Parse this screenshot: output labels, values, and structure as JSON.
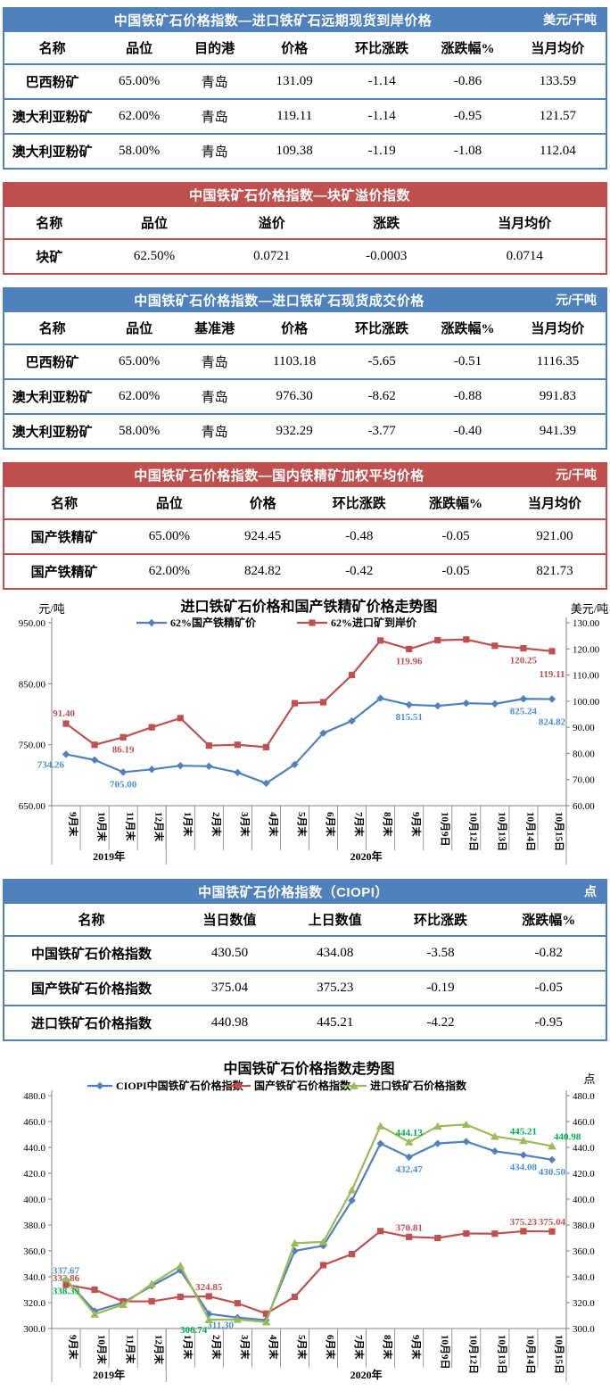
{
  "colors": {
    "table_blue": "#4f81bd",
    "table_red": "#c0504d",
    "series_blue": "#4f81bd",
    "series_red": "#c0504d",
    "series_green": "#9bbb59",
    "label_blue": "#4a90d9",
    "label_red": "#c0504d",
    "label_green": "#00b050",
    "axis_gray": "#808080"
  },
  "tables": [
    {
      "title": "中国铁矿石价格指数—进口铁矿石远期现货到岸价格",
      "unit": "美元/干吨",
      "theme": "blue",
      "columns": [
        "名称",
        "品位",
        "目的港",
        "价格",
        "环比涨跌",
        "涨跌幅%",
        "当月均价"
      ],
      "rows": [
        [
          "巴西粉矿",
          "65.00%",
          "青岛",
          "131.09",
          "-1.14",
          "-0.86",
          "133.59"
        ],
        [
          "澳大利亚粉矿",
          "62.00%",
          "青岛",
          "119.11",
          "-1.14",
          "-0.95",
          "121.57"
        ],
        [
          "澳大利亚粉矿",
          "58.00%",
          "青岛",
          "109.38",
          "-1.19",
          "-1.08",
          "112.04"
        ]
      ]
    },
    {
      "title": "中国铁矿石价格指数—块矿溢价指数",
      "unit": "",
      "theme": "red",
      "columns": [
        "名称",
        "品位",
        "溢价",
        "涨跌",
        "当月均价"
      ],
      "rows": [
        [
          "块矿",
          "62.50%",
          "0.0721",
          "-0.0003",
          "0.0714"
        ]
      ]
    },
    {
      "title": "中国铁矿石价格指数—进口铁矿石现货成交价格",
      "unit": "元/干吨",
      "theme": "blue",
      "columns": [
        "名称",
        "品位",
        "基准港",
        "价格",
        "环比涨跌",
        "涨跌幅%",
        "当月均价"
      ],
      "rows": [
        [
          "巴西粉矿",
          "65.00%",
          "青岛",
          "1103.18",
          "-5.65",
          "-0.51",
          "1116.35"
        ],
        [
          "澳大利亚粉矿",
          "62.00%",
          "青岛",
          "976.30",
          "-8.62",
          "-0.88",
          "991.83"
        ],
        [
          "澳大利亚粉矿",
          "58.00%",
          "青岛",
          "932.29",
          "-3.77",
          "-0.40",
          "941.39"
        ]
      ]
    },
    {
      "title": "中国铁矿石价格指数—国内铁精矿加权平均价格",
      "unit": "元/干吨",
      "theme": "red",
      "columns": [
        "名称",
        "品位",
        "价格",
        "环比涨跌",
        "涨跌幅%",
        "当月均价"
      ],
      "rows": [
        [
          "国产铁精矿",
          "65.00%",
          "924.45",
          "-0.48",
          "-0.05",
          "921.00"
        ],
        [
          "国产铁精矿",
          "62.00%",
          "824.82",
          "-0.42",
          "-0.05",
          "821.73"
        ]
      ]
    },
    {
      "title": "中国铁矿石价格指数（CIOPI）",
      "unit": "点",
      "theme": "blue",
      "columns": [
        "名称",
        "当日数值",
        "上日数值",
        "环比涨跌",
        "涨跌幅%"
      ],
      "rows": [
        [
          "中国铁矿石价格指数",
          "430.50",
          "434.08",
          "-3.58",
          "-0.82"
        ],
        [
          "国产铁矿石价格指数",
          "375.04",
          "375.23",
          "-0.19",
          "-0.05"
        ],
        [
          "进口铁矿石价格指数",
          "440.98",
          "445.21",
          "-4.22",
          "-0.95"
        ]
      ]
    }
  ],
  "chart_data": [
    {
      "type": "line",
      "title": "进口铁矿石价格和国产铁精矿价格走势图",
      "left_axis": {
        "unit": "元/吨",
        "min": 650,
        "max": 950,
        "ticks": [
          "950.00",
          "850.00",
          "750.00",
          "650.00"
        ]
      },
      "right_axis": {
        "unit": "美元/吨",
        "min": 60,
        "max": 130,
        "ticks": [
          "130.00",
          "120.00",
          "110.00",
          "100.00",
          "90.00",
          "80.00",
          "70.00",
          "60.00"
        ]
      },
      "categories": [
        "9月末",
        "10月末",
        "11月末",
        "12月末",
        "1月末",
        "2月末",
        "3月末",
        "4月末",
        "5月末",
        "6月末",
        "7月末",
        "8月末",
        "9月末",
        "10月9日",
        "10月12日",
        "10月13日",
        "10月14日",
        "10月15日"
      ],
      "category_groups": [
        {
          "label": "2019年",
          "span": 4
        },
        {
          "label": "2020年",
          "span": 14
        }
      ],
      "grid": false,
      "legend_position": "top",
      "series": [
        {
          "name": "62%国产铁精矿价",
          "axis": "left",
          "color": "#4f81bd",
          "label_color": "#4a90d9",
          "marker": "diamond",
          "values": [
            734.26,
            725,
            705,
            709.5,
            715.6,
            714.7,
            704.4,
            686.7,
            717.6,
            769,
            789,
            826.2,
            815.51,
            813.7,
            818,
            817,
            825.24,
            824.82
          ],
          "labels": [
            {
              "i": 0,
              "t": "734.26",
              "p": "belowL"
            },
            {
              "i": 2,
              "t": "705.00",
              "p": "below"
            },
            {
              "i": 12,
              "t": "815.51",
              "p": "below"
            },
            {
              "i": 16,
              "t": "825.24",
              "p": "below"
            },
            {
              "i": 17,
              "t": "824.82",
              "p": "below2"
            }
          ]
        },
        {
          "name": "62%进口矿到岸价",
          "axis": "right",
          "color": "#c0504d",
          "label_color": "#c0504d",
          "marker": "square",
          "values": [
            91.4,
            83.3,
            86.19,
            90,
            93.5,
            83,
            83.3,
            82.4,
            99.2,
            99.6,
            110,
            123.2,
            119.96,
            123.3,
            123.6,
            121.2,
            120.25,
            119.11
          ],
          "labels": [
            {
              "i": 0,
              "t": "91.40",
              "p": "aboveL"
            },
            {
              "i": 2,
              "t": "86.19",
              "p": "below"
            },
            {
              "i": 12,
              "t": "119.96",
              "p": "below"
            },
            {
              "i": 16,
              "t": "120.25",
              "p": "below"
            },
            {
              "i": 17,
              "t": "119.11",
              "p": "below2"
            }
          ]
        }
      ]
    },
    {
      "type": "line",
      "title": "中国铁矿石价格指数走势图",
      "left_axis": {
        "unit": "",
        "min": 300,
        "max": 480,
        "ticks": [
          "480.0",
          "460.0",
          "440.0",
          "420.0",
          "400.0",
          "380.0",
          "360.0",
          "340.0",
          "320.0",
          "300.0"
        ]
      },
      "right_axis": {
        "unit": "点",
        "min": 300,
        "max": 480,
        "ticks": [
          "480.0",
          "460.0",
          "440.0",
          "420.0",
          "400.0",
          "380.0",
          "360.0",
          "340.0",
          "320.0",
          "300.0"
        ]
      },
      "categories": [
        "9月末",
        "10月末",
        "11月末",
        "12月末",
        "1月末",
        "2月末",
        "3月末",
        "4月末",
        "5月末",
        "6月末",
        "7月末",
        "8月末",
        "9月末",
        "10月9日",
        "10月12日",
        "10月13日",
        "10月14日",
        "10月15日"
      ],
      "category_groups": [
        {
          "label": "2019年",
          "span": 4
        },
        {
          "label": "2020年",
          "span": 14
        }
      ],
      "grid": false,
      "legend_position": "top",
      "series": [
        {
          "name": "CIOPI中国铁矿石价格指数",
          "axis": "left",
          "color": "#4f81bd",
          "label_color": "#4a90d9",
          "marker": "diamond",
          "values": [
            337.67,
            313.5,
            320,
            333,
            345,
            311.3,
            308.5,
            306.5,
            360,
            364,
            399,
            443,
            432.47,
            443,
            444.5,
            437,
            434.08,
            430.5
          ],
          "labels": [
            {
              "i": 0,
              "t": "337.67",
              "p": "above"
            },
            {
              "i": 5,
              "t": "311.30",
              "p": "belowR"
            },
            {
              "i": 12,
              "t": "432.47",
              "p": "below"
            },
            {
              "i": 16,
              "t": "434.08",
              "p": "below"
            },
            {
              "i": 17,
              "t": "430.50",
              "p": "below"
            }
          ]
        },
        {
          "name": "国产铁矿石价格指数",
          "axis": "left",
          "color": "#c0504d",
          "label_color": "#c0504d",
          "marker": "square",
          "values": [
            333.86,
            330,
            321,
            321,
            324.5,
            324.85,
            319.5,
            311.5,
            324.5,
            349,
            357.5,
            375.3,
            370.81,
            370,
            373.5,
            373.3,
            375.23,
            375.04
          ],
          "labels": [
            {
              "i": 0,
              "t": "333.86",
              "p": "aboveTight"
            },
            {
              "i": 5,
              "t": "324.85",
              "p": "above"
            },
            {
              "i": 12,
              "t": "370.81",
              "p": "above"
            },
            {
              "i": 16,
              "t": "375.23",
              "p": "above"
            },
            {
              "i": 17,
              "t": "375.04",
              "p": "above"
            }
          ]
        },
        {
          "name": "进口铁矿石价格指数",
          "axis": "left",
          "color": "#9bbb59",
          "label_color": "#00b050",
          "marker": "triangle",
          "values": [
            338.39,
            311,
            318.5,
            334.5,
            348.5,
            306.74,
            307,
            305,
            366,
            367,
            407,
            456.5,
            444.13,
            456.3,
            457.7,
            448.5,
            445.21,
            440.98
          ],
          "labels": [
            {
              "i": 0,
              "t": "338.39",
              "p": "below"
            },
            {
              "i": 5,
              "t": "306.74",
              "p": "belowL"
            },
            {
              "i": 12,
              "t": "444.13",
              "p": "above"
            },
            {
              "i": 16,
              "t": "445.21",
              "p": "above"
            },
            {
              "i": 17,
              "t": "440.98",
              "p": "aboveR"
            }
          ]
        }
      ]
    }
  ]
}
